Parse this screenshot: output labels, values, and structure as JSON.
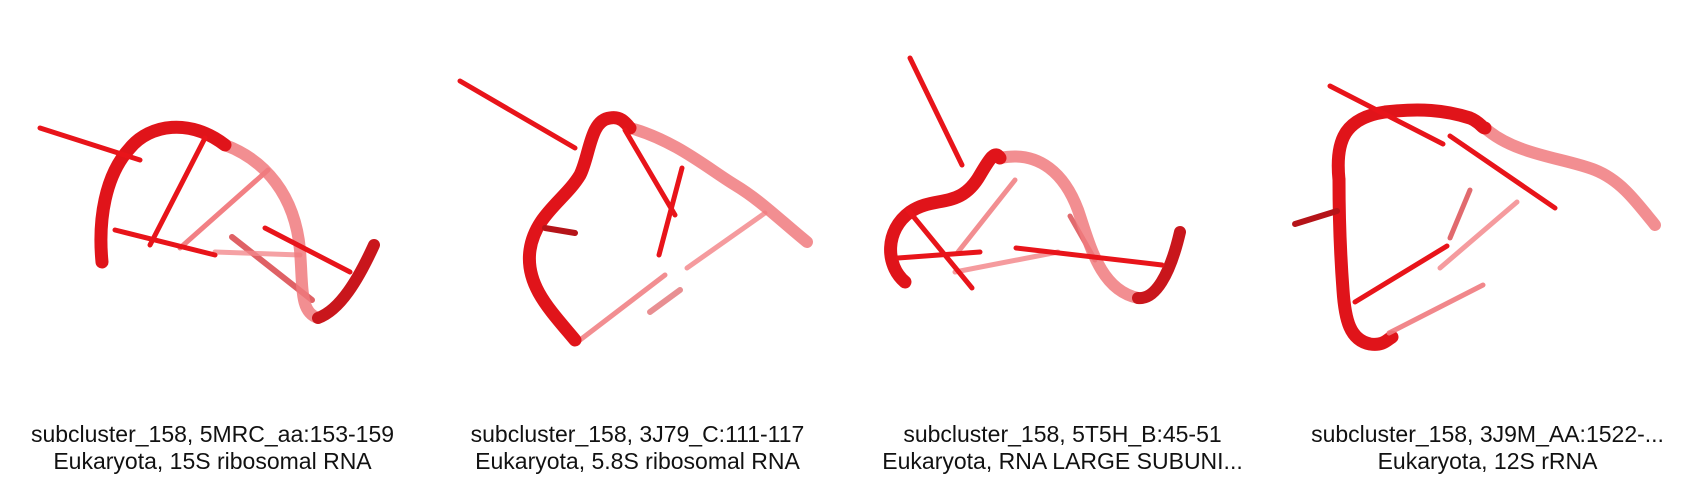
{
  "panels": [
    {
      "line1": "subcluster_158, 5MRC_aa:153-159",
      "line2": "Eukaryota, 15S ribosomal RNA",
      "render_color": "#e8141a"
    },
    {
      "line1": "subcluster_158, 3J79_C:111-117",
      "line2": "Eukaryota, 5.8S ribosomal RNA",
      "render_color": "#e8141a"
    },
    {
      "line1": "subcluster_158, 5T5H_B:45-51",
      "line2": "Eukaryota, RNA LARGE SUBUNI...",
      "render_color": "#e8141a"
    },
    {
      "line1": "subcluster_158, 3J9M_AA:1522-...",
      "line2": "Eukaryota, 12S rRNA",
      "render_color": "#e8141a"
    }
  ]
}
